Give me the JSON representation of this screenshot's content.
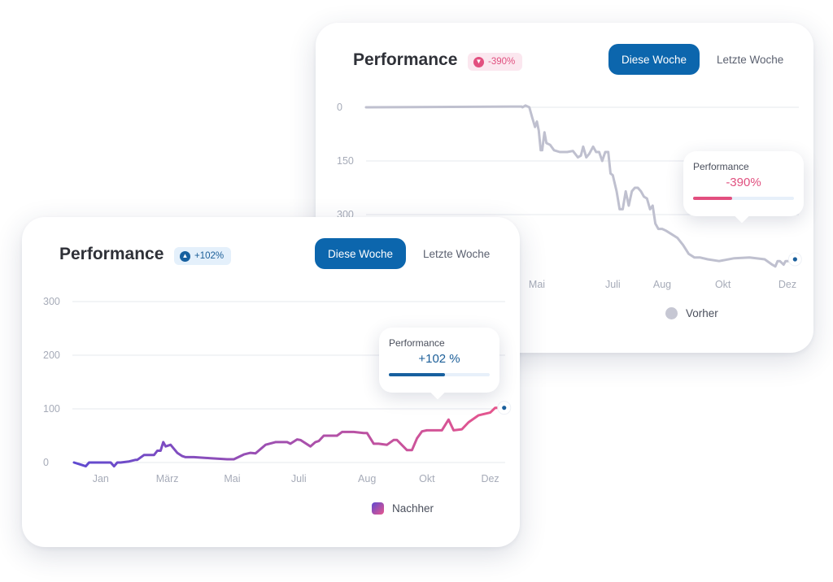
{
  "chart_data": [
    {
      "id": "back",
      "type": "line",
      "title": "Performance",
      "badge": "-390%",
      "tabs": [
        "Diese Woche",
        "Letzte Woche"
      ],
      "active_tab": 0,
      "y_ticks": [
        "0",
        "150",
        "300"
      ],
      "y_reversed": true,
      "ylim": [
        0,
        450
      ],
      "x_labels": [
        "Mai",
        "Juli",
        "Aug",
        "Okt",
        "Dez"
      ],
      "x_label_positions": [
        4,
        6,
        7.3,
        8.9,
        10.6
      ],
      "xlim": [
        -0.5,
        10.9
      ],
      "series": [
        {
          "name": "Vorher",
          "color": "#bfc0cf",
          "x": [
            -0.5,
            3.3,
            3.5,
            3.6,
            3.62,
            3.7,
            3.8,
            3.88,
            3.95,
            4.0,
            4.05,
            4.1,
            4.14,
            4.2,
            4.25,
            4.35,
            4.45,
            4.6,
            4.8,
            4.95,
            5.08,
            5.16,
            5.22,
            5.3,
            5.38,
            5.48,
            5.56,
            5.64,
            5.72,
            5.8,
            5.88,
            5.94,
            6.0,
            6.1,
            6.18,
            6.26,
            6.34,
            6.42,
            6.5,
            6.58,
            6.66,
            6.74,
            6.82,
            6.9,
            6.98,
            7.05,
            7.12,
            7.2,
            7.3,
            7.4,
            7.55,
            7.7,
            7.85,
            8.0,
            8.15,
            8.3,
            8.5,
            8.8,
            9.2,
            9.6,
            10.0,
            10.2,
            10.28,
            10.34,
            10.4,
            10.5,
            10.55,
            10.65,
            10.75,
            10.8
          ],
          "values": [
            0,
            -2,
            -2,
            -2,
            0,
            -5,
            0,
            30,
            55,
            40,
            65,
            120,
            120,
            70,
            100,
            105,
            120,
            125,
            125,
            122,
            140,
            135,
            110,
            140,
            130,
            110,
            125,
            125,
            150,
            125,
            125,
            185,
            190,
            235,
            285,
            285,
            235,
            275,
            235,
            225,
            225,
            235,
            250,
            255,
            285,
            275,
            325,
            340,
            340,
            345,
            355,
            365,
            385,
            410,
            420,
            420,
            425,
            430,
            422,
            420,
            425,
            440,
            445,
            430,
            430,
            440,
            430,
            430,
            430,
            425
          ]
        }
      ],
      "tooltip": {
        "label": "Performance",
        "value": "-390%",
        "progress": 0.39
      },
      "legend": "Vorher"
    },
    {
      "id": "front",
      "type": "line",
      "title": "Performance",
      "badge": "+102%",
      "tabs": [
        "Diese Woche",
        "Letzte Woche"
      ],
      "active_tab": 0,
      "y_ticks": [
        "300",
        "200",
        "100",
        "0"
      ],
      "y_reversed": false,
      "ylim": [
        0,
        300
      ],
      "x_labels": [
        "Jan",
        "März",
        "Mai",
        "Juli",
        "Aug",
        "Okt",
        "Dez"
      ],
      "x_label_positions": [
        0,
        2,
        3.95,
        5.95,
        8,
        9.8,
        11.7
      ],
      "xlim": [
        -0.85,
        12.15
      ],
      "series": [
        {
          "name": "Nachher",
          "gradient": [
            "#5f4ad0",
            "#e9568c"
          ],
          "x": [
            -0.8,
            -0.6,
            -0.45,
            -0.35,
            0.0,
            0.3,
            0.4,
            0.5,
            0.6,
            0.85,
            1.05,
            1.1,
            1.3,
            1.45,
            1.6,
            1.7,
            1.8,
            1.88,
            1.95,
            2.1,
            2.3,
            2.45,
            2.55,
            2.8,
            3.3,
            3.8,
            4.0,
            4.3,
            4.5,
            4.65,
            4.95,
            5.25,
            5.45,
            5.6,
            5.7,
            5.9,
            6.0,
            6.3,
            6.45,
            6.55,
            6.7,
            7.1,
            7.25,
            7.6,
            7.9,
            8.0,
            8.2,
            8.35,
            8.6,
            8.8,
            8.9,
            9.2,
            9.35,
            9.5,
            9.65,
            9.8,
            10.0,
            10.25,
            10.45,
            10.6,
            10.85,
            11.05,
            11.35,
            11.7,
            11.85,
            11.95,
            12.05,
            12.12
          ],
          "values": [
            0,
            -4,
            -7,
            0,
            0,
            0,
            -7,
            0,
            0,
            2,
            5,
            5,
            14,
            14,
            14,
            22,
            22,
            38,
            30,
            33,
            18,
            12,
            10,
            10,
            8,
            6,
            6,
            15,
            18,
            17,
            33,
            38,
            38,
            38,
            35,
            43,
            42,
            30,
            38,
            40,
            50,
            50,
            57,
            57,
            55,
            55,
            35,
            35,
            33,
            42,
            42,
            23,
            23,
            45,
            58,
            60,
            60,
            60,
            80,
            60,
            62,
            75,
            88,
            93,
            102,
            102,
            99,
            102
          ]
        }
      ],
      "tooltip": {
        "label": "Performance",
        "value": "+102 %",
        "progress": 0.56
      },
      "legend": "Nachher"
    }
  ]
}
